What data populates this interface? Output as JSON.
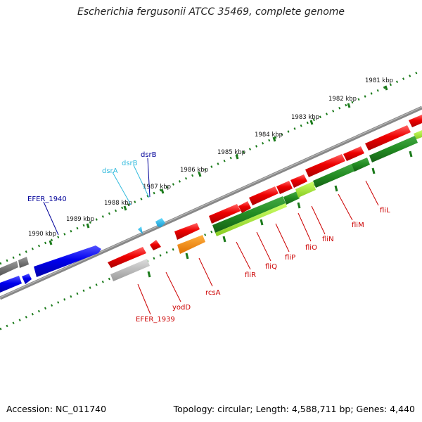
{
  "title": "Escherichia fergusonii ATCC 35469, complete genome",
  "footer": {
    "accession": "Accession: NC_011740",
    "summary": "Topology: circular; Length: 4,588,711 bp; Genes: 4,440"
  },
  "ruler": {
    "unit": "kbp",
    "ticks": [
      {
        "label": "1981 kbp"
      },
      {
        "label": "1982 kbp"
      },
      {
        "label": "1983 kbp"
      },
      {
        "label": "1984 kbp"
      },
      {
        "label": "1985 kbp"
      },
      {
        "label": "1986 kbp"
      },
      {
        "label": "1987 kbp"
      },
      {
        "label": "1988 kbp"
      },
      {
        "label": "1989 kbp"
      },
      {
        "label": "1990 kbp"
      }
    ]
  },
  "genes": [
    {
      "name": "EFER_1940",
      "color": "#000099"
    },
    {
      "name": "dsrA",
      "color": "#33bbdd"
    },
    {
      "name": "dsrB",
      "color": "#33bbdd"
    },
    {
      "name": "dsrB",
      "color": "#000099"
    },
    {
      "name": "EFER_1939",
      "color": "#cc0000"
    },
    {
      "name": "yodD",
      "color": "#cc0000"
    },
    {
      "name": "rcsA",
      "color": "#cc0000"
    },
    {
      "name": "fliR",
      "color": "#cc0000"
    },
    {
      "name": "fliQ",
      "color": "#cc0000"
    },
    {
      "name": "fliP",
      "color": "#cc0000"
    },
    {
      "name": "fliO",
      "color": "#cc0000"
    },
    {
      "name": "fliN",
      "color": "#cc0000"
    },
    {
      "name": "fliM",
      "color": "#cc0000"
    },
    {
      "name": "fliL",
      "color": "#cc0000"
    }
  ],
  "colors": {
    "cds_forward": "#0000ee",
    "cds_reverse": "#ee0000",
    "gene_reverse_green": "#228b22",
    "rna": "#22b0e0",
    "other_orange": "#ff8800",
    "pseudo_grey": "#999999",
    "backbone": "#888888",
    "ruler_dots": "#1a7a1a"
  }
}
